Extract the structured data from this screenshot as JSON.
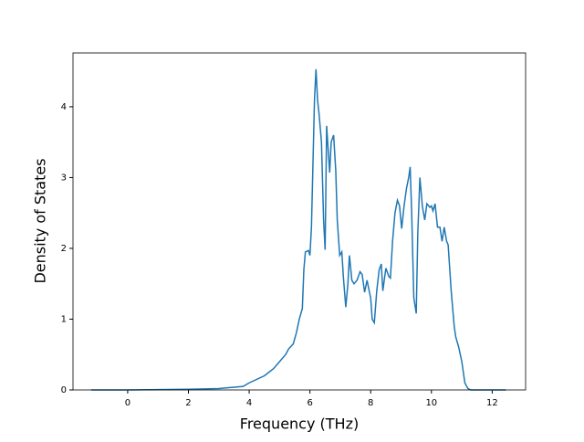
{
  "chart_data": {
    "type": "line",
    "xlabel": "Frequency (THz)",
    "ylabel": "Density of States",
    "xlim": [
      -1.8,
      13.1
    ],
    "ylim": [
      0,
      4.76
    ],
    "xticks": [
      0,
      2,
      4,
      6,
      8,
      10,
      12
    ],
    "yticks": [
      0,
      1,
      2,
      3,
      4
    ],
    "series": [
      {
        "color": "#1f77b4",
        "x": [
          -1.2,
          0,
          2,
          3,
          3.8,
          4,
          4.5,
          4.8,
          5.0,
          5.2,
          5.3,
          5.45,
          5.55,
          5.65,
          5.75,
          5.8,
          5.85,
          5.95,
          6.0,
          6.05,
          6.1,
          6.15,
          6.2,
          6.25,
          6.3,
          6.38,
          6.45,
          6.5,
          6.55,
          6.6,
          6.65,
          6.7,
          6.78,
          6.85,
          6.9,
          6.98,
          7.05,
          7.1,
          7.18,
          7.25,
          7.3,
          7.38,
          7.45,
          7.55,
          7.65,
          7.72,
          7.8,
          7.88,
          7.95,
          8.0,
          8.05,
          8.12,
          8.2,
          8.28,
          8.35,
          8.4,
          8.5,
          8.6,
          8.65,
          8.72,
          8.8,
          8.88,
          8.95,
          9.02,
          9.1,
          9.18,
          9.25,
          9.3,
          9.35,
          9.42,
          9.5,
          9.55,
          9.62,
          9.7,
          9.78,
          9.85,
          9.95,
          10.0,
          10.05,
          10.12,
          10.2,
          10.28,
          10.35,
          10.42,
          10.5,
          10.55,
          10.65,
          10.75,
          10.8,
          10.9,
          11.0,
          11.1,
          11.2,
          11.3,
          12.45
        ],
        "values": [
          0,
          0,
          0.01,
          0.02,
          0.05,
          0.1,
          0.2,
          0.3,
          0.4,
          0.5,
          0.58,
          0.65,
          0.8,
          1.0,
          1.15,
          1.7,
          1.95,
          1.97,
          1.9,
          2.3,
          3.2,
          4.1,
          4.53,
          4.1,
          3.9,
          3.5,
          2.4,
          1.98,
          3.73,
          3.4,
          3.07,
          3.5,
          3.6,
          3.1,
          2.4,
          1.9,
          1.95,
          1.6,
          1.17,
          1.5,
          1.9,
          1.55,
          1.5,
          1.55,
          1.67,
          1.63,
          1.38,
          1.55,
          1.4,
          1.3,
          1.0,
          0.95,
          1.4,
          1.7,
          1.78,
          1.4,
          1.72,
          1.6,
          1.58,
          2.1,
          2.5,
          2.68,
          2.6,
          2.28,
          2.6,
          2.85,
          3.0,
          3.15,
          2.5,
          1.3,
          1.08,
          2.2,
          3.0,
          2.6,
          2.4,
          2.63,
          2.58,
          2.6,
          2.53,
          2.63,
          2.3,
          2.3,
          2.1,
          2.3,
          2.1,
          2.05,
          1.4,
          0.9,
          0.75,
          0.6,
          0.4,
          0.1,
          0.02,
          0,
          0
        ]
      }
    ]
  }
}
